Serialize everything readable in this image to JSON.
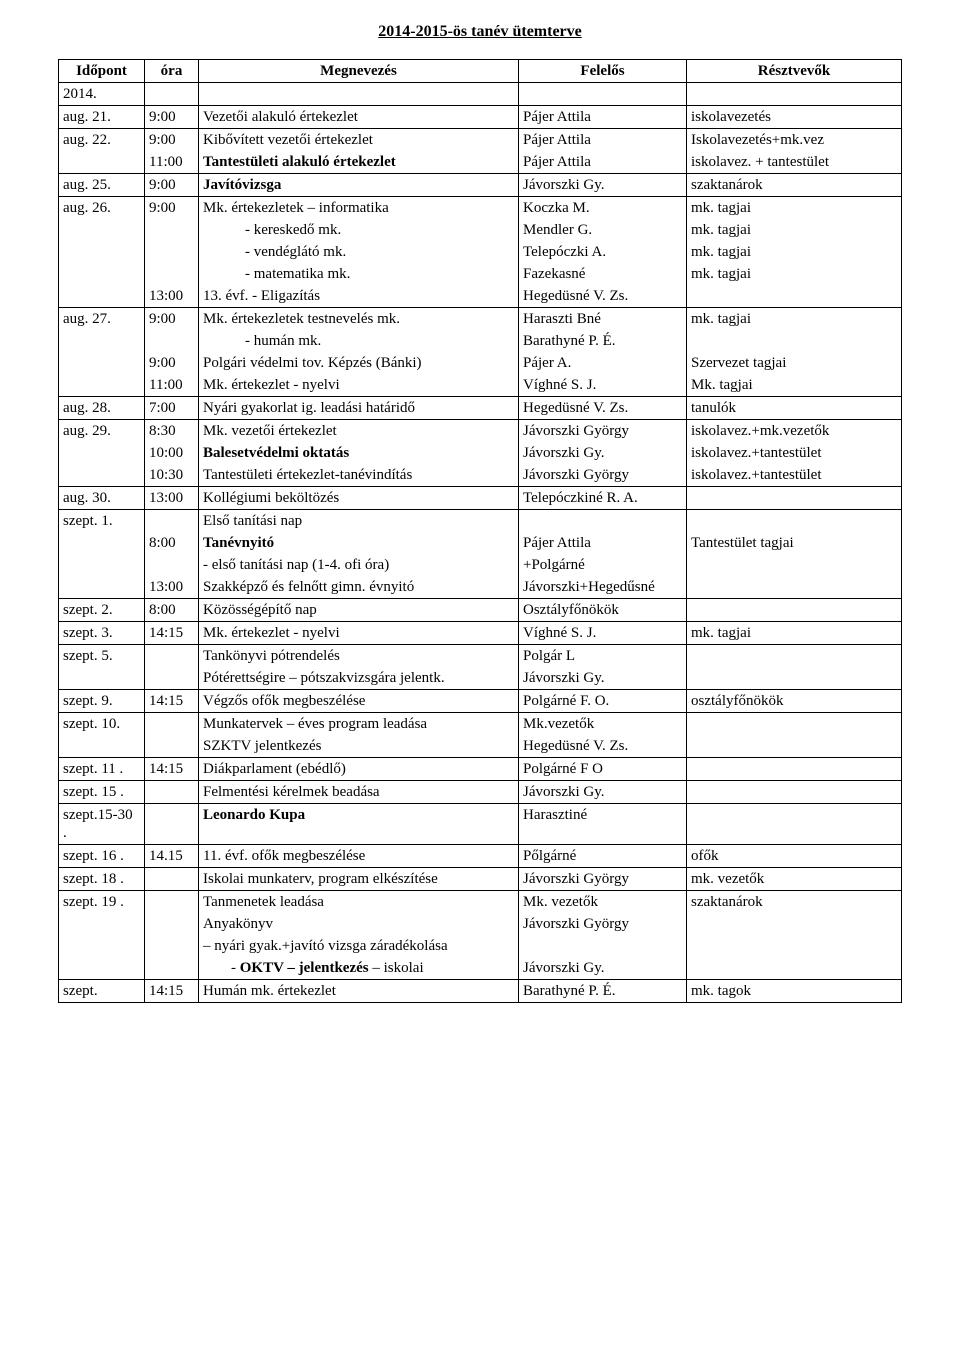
{
  "title": "2014-2015-ös tanév ütemterve",
  "header": {
    "c1": "Időpont",
    "c2": "óra",
    "c3": "Megnevezés",
    "c4": "Felelős",
    "c5": "Résztvevők"
  },
  "rows": [
    {
      "year": "2014.",
      "times": [],
      "descs": [],
      "resps": [],
      "parts": []
    },
    {
      "date": "aug. 21.",
      "t1": "9:00",
      "d1": "Vezetői alakuló értekezlet",
      "r1": "Pájer Attila",
      "p1": "iskolavezetés"
    },
    {
      "date": "aug. 22.",
      "t1": "9:00",
      "t2": "11:00",
      "d1": "Kibővített vezetői értekezlet",
      "d2": "Tantestületi alakuló értekezlet",
      "r1": "Pájer Attila",
      "r2": "Pájer Attila",
      "p1": "Iskolavezetés+mk.vez",
      "p2": "iskolavez. + tantestület",
      "d2b": true
    },
    {
      "date": "aug. 25.",
      "t1": "9:00",
      "d1": "Javítóvizsga",
      "r1": "Jávorszki Gy.",
      "p1": "szaktanárok",
      "d1b": true
    },
    {
      "date": "aug. 26.",
      "t1": "9:00",
      "d1": "Mk. értekezletek – informatika",
      "r1": "Koczka M.",
      "p1": "mk. tagjai",
      "sub": [
        {
          "d": "-   kereskedő mk.",
          "r": "Mendler G.",
          "p": "mk. tagjai"
        },
        {
          "d": "-   vendéglátó mk.",
          "r": "Telepóczki A.",
          "p": "mk. tagjai"
        },
        {
          "d": "-   matematika mk.",
          "r": "Fazekasné",
          "p": "mk. tagjai"
        }
      ],
      "t5": "13:00",
      "d5": "13. évf. - Eligazítás",
      "r5": "Hegedüsné V. Zs.",
      "p5": ""
    },
    {
      "date": "aug. 27.",
      "t1": "9:00",
      "d1": "Mk. értekezletek testnevelés mk.",
      "r1": "Haraszti Bné",
      "p1": "mk. tagjai",
      "sub": [
        {
          "d": "-   humán mk.",
          "r": "Barathyné P. É.",
          "p": ""
        }
      ],
      "t3": "9:00",
      "d3": "Polgári védelmi tov. Képzés (Bánki)",
      "r3": "Pájer A.",
      "p3": "Szervezet tagjai",
      "t4": "11:00",
      "d4": "Mk. értekezlet - nyelvi",
      "r4": "Víghné S. J.",
      "p4": "Mk. tagjai"
    },
    {
      "date": "aug. 28.",
      "t1": "7:00",
      "d1": "Nyári gyakorlat ig. leadási határidő",
      "r1": "Hegedüsné V. Zs.",
      "p1": "tanulók"
    },
    {
      "date": "aug. 29.",
      "t1": "8:30",
      "d1": "Mk. vezetői értekezlet",
      "r1": "Jávorszki György",
      "p1": "iskolavez.+mk.vezetők",
      "t2": "10:00",
      "d2": "Balesetvédelmi oktatás",
      "r2": "Jávorszki Gy.",
      "p2": "iskolavez.+tantestület",
      "d2b": true,
      "t3": "10:30",
      "d3": "Tantestületi értekezlet-tanévindítás",
      "r3": "Jávorszki György",
      "p3": "iskolavez.+tantestület"
    },
    {
      "date": "aug. 30.",
      "t1": "13:00",
      "d1": "Kollégiumi beköltözés",
      "r1": "Telepóczkiné R. A.",
      "p1": ""
    },
    {
      "date": "szept. 1.",
      "t1": "",
      "d1": "Első tanítási nap",
      "r1": "",
      "p1": "",
      "t2": "8:00",
      "d2": "Tanévnyitó",
      "r2": "Pájer Attila",
      "p2": "Tantestület tagjai",
      "d2b": true,
      "d3": "  - első tanítási nap (1-4. ofi óra)",
      "r3": "+Polgárné",
      "t4": "13:00",
      "d4": "Szakképző és felnőtt gimn. évnyitó",
      "r4": "Jávorszki+Hegedűsné"
    },
    {
      "date": "szept. 2.",
      "t1": "8:00",
      "d1": "Közösségépítő nap",
      "r1": "Osztályfőnökök",
      "p1": ""
    },
    {
      "date": "szept. 3.",
      "t1": "14:15",
      "d1": "Mk. értekezlet - nyelvi",
      "r1": "Víghné S. J.",
      "p1": "mk. tagjai"
    },
    {
      "date": "szept. 5.",
      "t1": "",
      "d1": "Tankönyvi pótrendelés",
      "r1": "Polgár L",
      "p1": "",
      "d2": "Pótérettségire – pótszakvizsgára jelentk.",
      "r2": "Jávorszki Gy."
    },
    {
      "date": "szept. 9.",
      "t1": "14:15",
      "d1": "Végzős ofők megbeszélése",
      "r1": "Polgárné F. O.",
      "p1": "osztályfőnökök"
    },
    {
      "date": "szept. 10.",
      "t1": "",
      "d1": "Munkatervek – éves program leadása",
      "r1": "Mk.vezetők",
      "p1": "",
      "d2": "SZKTV jelentkezés",
      "r2": "Hegedüsné V. Zs."
    },
    {
      "date": "szept. 11 .",
      "t1": "14:15",
      "d1": "Diákparlament (ebédlő)",
      "r1": "Polgárné F O",
      "p1": ""
    },
    {
      "date": "szept. 15 .",
      "t1": "",
      "d1": "Felmentési kérelmek beadása",
      "r1": "Jávorszki Gy.",
      "p1": ""
    },
    {
      "date": "szept.15-30 .",
      "t1": "",
      "d1": "Leonardo Kupa",
      "r1": "Harasztiné",
      "p1": "",
      "d1b": true
    },
    {
      "date": "szept. 16 .",
      "t1": "14.15",
      "d1": "11. évf. ofők megbeszélése",
      "r1": "Pőlgárné",
      "p1": "ofők"
    },
    {
      "date": "szept. 18 .",
      "t1": "",
      "d1": "Iskolai munkaterv, program elkészítése",
      "r1": "Jávorszki György",
      "p1": "mk. vezetők"
    },
    {
      "date": "szept. 19 .",
      "t1": "",
      "d1": "Tanmenetek leadása",
      "r1": "Mk. vezetők",
      "p1": "szaktanárok",
      "d2": "Anyakönyv",
      "r2": "Jávorszki György",
      "d3": "   – nyári gyak.+javító vizsga záradékolása",
      "r3": "",
      "d4l": "-   ",
      "d4": "OKTV – jelentkezés",
      "d4s": " – iskolai",
      "r4": "Jávorszki Gy.",
      "d4b": true
    },
    {
      "date": "szept.",
      "t1": "14:15",
      "d1": "Humán mk. értekezlet",
      "r1": "Barathyné P. É.",
      "p1": "mk. tagok"
    }
  ]
}
